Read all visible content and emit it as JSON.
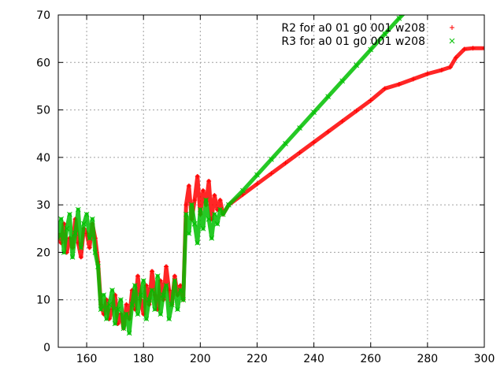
{
  "chart_data": {
    "type": "scatter",
    "title": "",
    "xlabel": "",
    "ylabel": "",
    "xlim": [
      150,
      300
    ],
    "ylim": [
      0,
      70
    ],
    "xticks": [
      160,
      180,
      200,
      220,
      240,
      260,
      280,
      300
    ],
    "yticks": [
      0,
      10,
      20,
      30,
      40,
      50,
      60,
      70
    ],
    "grid": true,
    "legend_position": "top-right",
    "series": [
      {
        "name": "R2 for a0 01 g0 001 w208",
        "color": "#ff0000",
        "marker": "+",
        "points": [
          [
            150,
            24
          ],
          [
            151,
            22
          ],
          [
            152,
            26
          ],
          [
            153,
            20
          ],
          [
            154,
            23
          ],
          [
            155,
            21
          ],
          [
            156,
            27
          ],
          [
            157,
            22
          ],
          [
            158,
            19
          ],
          [
            159,
            25
          ],
          [
            160,
            24
          ],
          [
            161,
            21
          ],
          [
            162,
            26
          ],
          [
            163,
            23
          ],
          [
            164,
            18
          ],
          [
            165,
            9
          ],
          [
            166,
            7
          ],
          [
            167,
            10
          ],
          [
            168,
            6
          ],
          [
            169,
            8
          ],
          [
            170,
            11
          ],
          [
            171,
            5
          ],
          [
            172,
            7
          ],
          [
            173,
            4
          ],
          [
            174,
            9
          ],
          [
            175,
            6
          ],
          [
            176,
            12
          ],
          [
            177,
            8
          ],
          [
            178,
            15
          ],
          [
            179,
            10
          ],
          [
            180,
            7
          ],
          [
            181,
            13
          ],
          [
            182,
            9
          ],
          [
            183,
            16
          ],
          [
            184,
            11
          ],
          [
            185,
            8
          ],
          [
            186,
            14
          ],
          [
            187,
            10
          ],
          [
            188,
            17
          ],
          [
            189,
            12
          ],
          [
            190,
            9
          ],
          [
            191,
            15
          ],
          [
            192,
            11
          ],
          [
            193,
            13
          ],
          [
            194,
            10
          ],
          [
            195,
            30
          ],
          [
            196,
            34
          ],
          [
            197,
            27
          ],
          [
            198,
            31
          ],
          [
            199,
            36
          ],
          [
            200,
            28
          ],
          [
            201,
            33
          ],
          [
            202,
            30
          ],
          [
            203,
            35
          ],
          [
            204,
            27
          ],
          [
            205,
            32
          ],
          [
            206,
            29
          ],
          [
            207,
            31
          ],
          [
            208,
            28
          ],
          [
            210,
            30
          ],
          [
            215,
            32.2
          ],
          [
            220,
            34.4
          ],
          [
            225,
            36.6
          ],
          [
            230,
            38.8
          ],
          [
            235,
            41
          ],
          [
            240,
            43.2
          ],
          [
            245,
            45.4
          ],
          [
            250,
            47.6
          ],
          [
            255,
            49.8
          ],
          [
            260,
            52
          ],
          [
            265,
            54.5
          ],
          [
            270,
            55.4
          ],
          [
            275,
            56.5
          ],
          [
            280,
            57.6
          ],
          [
            285,
            58.4
          ],
          [
            288,
            59
          ],
          [
            290,
            61
          ],
          [
            293,
            62.8
          ],
          [
            296,
            63
          ],
          [
            300,
            63
          ]
        ]
      },
      {
        "name": "R3 for a0 01 g0 001 w208",
        "color": "#00c000",
        "marker": "x",
        "points": [
          [
            150,
            23
          ],
          [
            151,
            27
          ],
          [
            152,
            20
          ],
          [
            153,
            25
          ],
          [
            154,
            28
          ],
          [
            155,
            19
          ],
          [
            156,
            24
          ],
          [
            157,
            29
          ],
          [
            158,
            21
          ],
          [
            159,
            26
          ],
          [
            160,
            28
          ],
          [
            161,
            23
          ],
          [
            162,
            27
          ],
          [
            163,
            20
          ],
          [
            164,
            17
          ],
          [
            165,
            8
          ],
          [
            166,
            11
          ],
          [
            167,
            6
          ],
          [
            168,
            9
          ],
          [
            169,
            12
          ],
          [
            170,
            5
          ],
          [
            171,
            8
          ],
          [
            172,
            10
          ],
          [
            173,
            4
          ],
          [
            174,
            7
          ],
          [
            175,
            3
          ],
          [
            176,
            9
          ],
          [
            177,
            13
          ],
          [
            178,
            7
          ],
          [
            179,
            11
          ],
          [
            180,
            14
          ],
          [
            181,
            6
          ],
          [
            182,
            10
          ],
          [
            183,
            12
          ],
          [
            184,
            8
          ],
          [
            185,
            15
          ],
          [
            186,
            7
          ],
          [
            187,
            11
          ],
          [
            188,
            13
          ],
          [
            189,
            6
          ],
          [
            190,
            9
          ],
          [
            191,
            14
          ],
          [
            192,
            8
          ],
          [
            193,
            12
          ],
          [
            194,
            10
          ],
          [
            195,
            28
          ],
          [
            196,
            24
          ],
          [
            197,
            30
          ],
          [
            198,
            26
          ],
          [
            199,
            22
          ],
          [
            200,
            29
          ],
          [
            201,
            25
          ],
          [
            202,
            31
          ],
          [
            203,
            27
          ],
          [
            204,
            23
          ],
          [
            205,
            28
          ],
          [
            206,
            26
          ],
          [
            207,
            29
          ],
          [
            208,
            28
          ],
          [
            210,
            30
          ],
          [
            215,
            33
          ],
          [
            220,
            36.3
          ],
          [
            225,
            39.6
          ],
          [
            230,
            42.9
          ],
          [
            235,
            46.2
          ],
          [
            240,
            49.5
          ],
          [
            245,
            52.8
          ],
          [
            250,
            56.1
          ],
          [
            255,
            59.4
          ],
          [
            260,
            62.7
          ],
          [
            265,
            66
          ],
          [
            270,
            69.3
          ],
          [
            272,
            70.5
          ]
        ]
      }
    ]
  }
}
